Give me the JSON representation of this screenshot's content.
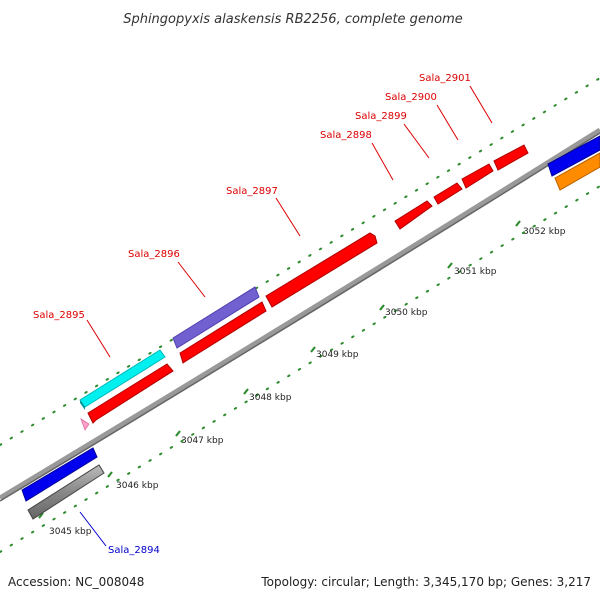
{
  "title": "Sphingopyxis alaskensis RB2256, complete genome",
  "footer": {
    "accession": "Accession: NC_008048",
    "summary": "Topology: circular; Length: 3,345,170 bp; Genes: 3,217"
  },
  "colors": {
    "backbone": "#888888",
    "tick": "#2e8b2e",
    "label_red": "#dd0000",
    "label_blue": "#0000cc"
  },
  "ticks": [
    "3045 kbp",
    "3046 kbp",
    "3047 kbp",
    "3048 kbp",
    "3049 kbp",
    "3050 kbp",
    "3051 kbp",
    "3052 kbp"
  ],
  "genes": [
    {
      "label": "Sala_2895",
      "color": "#ff0000"
    },
    {
      "label": "Sala_2896",
      "color": "#ff0000"
    },
    {
      "label": "Sala_2897",
      "color": "#ff0000"
    },
    {
      "label": "Sala_2898",
      "color": "#ff0000"
    },
    {
      "label": "Sala_2899",
      "color": "#ff0000"
    },
    {
      "label": "Sala_2900",
      "color": "#ff0000"
    },
    {
      "label": "Sala_2901",
      "color": "#ff0000"
    },
    {
      "label": "Sala_2894",
      "color": "#666666"
    }
  ],
  "features": [
    {
      "type": "cyan",
      "color": "#00f0f0"
    },
    {
      "type": "purple",
      "color": "#7060d0"
    },
    {
      "type": "blue",
      "color": "#0000ee"
    },
    {
      "type": "orange",
      "color": "#ff8c00"
    },
    {
      "type": "pink",
      "color": "#ff9ec8"
    }
  ]
}
